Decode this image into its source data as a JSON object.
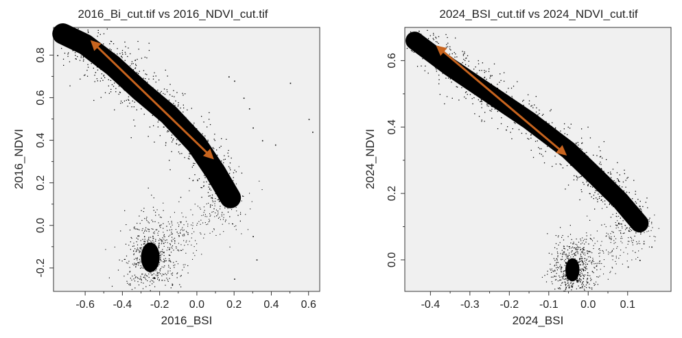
{
  "chart_data": [
    {
      "type": "scatter",
      "title": "2016_Bi_cut.tif vs 2016_NDVI_cut.tif",
      "xlabel": "2016_BSI",
      "ylabel": "2016_NDVI",
      "xlim": [
        -0.77,
        0.66
      ],
      "ylim": [
        -0.31,
        0.93
      ],
      "xticks": [
        -0.6,
        -0.4,
        -0.2,
        0.0,
        0.2,
        0.4,
        0.6
      ],
      "xtick_labels": [
        "-0.6",
        "-0.4",
        "-0.2",
        "0.0",
        "0.2",
        "0.4",
        "0.6"
      ],
      "yticks": [
        -0.2,
        0.0,
        0.2,
        0.4,
        0.6,
        0.8
      ],
      "ytick_labels": [
        "-0.2",
        "0.0",
        "0.2",
        "0.4",
        "0.6",
        "0.8"
      ],
      "grid": false,
      "point_color": "#000000",
      "arrow_color": "#c8641e",
      "density_clusters": [
        {
          "shape": "band",
          "x": [
            -0.72,
            -0.6,
            -0.45,
            -0.3,
            -0.15,
            0.0,
            0.1,
            0.18
          ],
          "y": [
            0.9,
            0.85,
            0.75,
            0.63,
            0.52,
            0.38,
            0.25,
            0.13
          ],
          "spread": 0.045
        },
        {
          "shape": "blob",
          "x": -0.25,
          "y": -0.15,
          "sx": 0.05,
          "sy": 0.07
        }
      ],
      "scattered_points": [
        {
          "x": 0.17,
          "y": 0.7
        },
        {
          "x": 0.2,
          "y": 0.68
        },
        {
          "x": 0.25,
          "y": 0.6
        },
        {
          "x": 0.28,
          "y": 0.55
        },
        {
          "x": 0.3,
          "y": 0.46
        },
        {
          "x": 0.35,
          "y": 0.4
        },
        {
          "x": 0.42,
          "y": 0.38
        },
        {
          "x": 0.5,
          "y": 0.67
        },
        {
          "x": 0.6,
          "y": 0.5
        },
        {
          "x": 0.62,
          "y": 0.44
        },
        {
          "x": -0.75,
          "y": 0.8
        },
        {
          "x": 0.3,
          "y": -0.05
        },
        {
          "x": 0.32,
          "y": -0.16
        },
        {
          "x": 0.2,
          "y": -0.25
        }
      ],
      "arrow": {
        "from": [
          0.08,
          0.32
        ],
        "to": [
          -0.56,
          0.86
        ]
      }
    },
    {
      "type": "scatter",
      "title": "2024_BSI_cut.tif vs 2024_NDVI_cut.tif",
      "xlabel": "2024_BSI",
      "ylabel": "2024_NDVI",
      "xlim": [
        -0.465,
        0.21
      ],
      "ylim": [
        -0.095,
        0.7
      ],
      "xticks": [
        -0.4,
        -0.3,
        -0.2,
        -0.1,
        0.0,
        0.1
      ],
      "xtick_labels": [
        "-0.4",
        "-0.3",
        "-0.2",
        "-0.1",
        "0.0",
        "0.1"
      ],
      "yticks": [
        0.0,
        0.2,
        0.4,
        0.6
      ],
      "ytick_labels": [
        "0.0",
        "0.2",
        "0.4",
        "0.6"
      ],
      "grid": false,
      "point_color": "#000000",
      "arrow_color": "#c8641e",
      "density_clusters": [
        {
          "shape": "band",
          "x": [
            -0.44,
            -0.35,
            -0.25,
            -0.15,
            -0.05,
            0.02,
            0.08,
            0.13
          ],
          "y": [
            0.66,
            0.58,
            0.5,
            0.42,
            0.33,
            0.25,
            0.18,
            0.11
          ],
          "spread": 0.025
        },
        {
          "shape": "blob",
          "x": -0.04,
          "y": -0.03,
          "sx": 0.018,
          "sy": 0.035
        }
      ],
      "scattered_points": [
        {
          "x": -0.44,
          "y": 0.68
        },
        {
          "x": -0.43,
          "y": 0.69
        },
        {
          "x": -0.36,
          "y": 0.62
        },
        {
          "x": 0.14,
          "y": 0.05
        },
        {
          "x": 0.16,
          "y": 0.04
        },
        {
          "x": 0.13,
          "y": 0.0
        },
        {
          "x": 0.1,
          "y": -0.02
        }
      ],
      "arrow": {
        "from": [
          -0.06,
          0.32
        ],
        "to": [
          -0.38,
          0.64
        ]
      }
    }
  ]
}
